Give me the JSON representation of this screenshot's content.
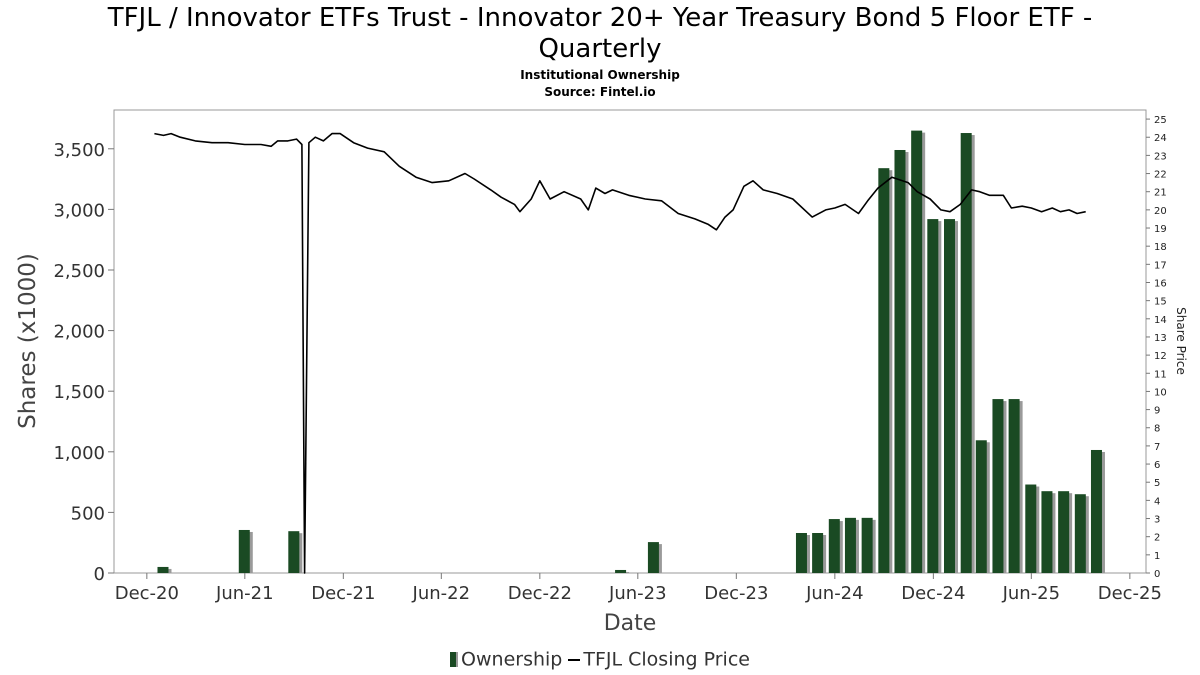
{
  "header": {
    "title_line1": "TFJL / Innovator ETFs Trust - Innovator 20+ Year Treasury Bond 5 Floor ETF -",
    "title_line2": "Quarterly",
    "subtitle1": "Institutional Ownership",
    "subtitle2": "Source: Fintel.io"
  },
  "legend": {
    "ownership": "Ownership",
    "price": "TFJL Closing Price"
  },
  "colors": {
    "bar": "#1a4a23",
    "bar_shadow": "#9a9a9a",
    "line": "#000000"
  },
  "chart_data": {
    "type": "bar",
    "xlabel": "Date",
    "ylabel": "Shares (x1000)",
    "y2label": "Share Price",
    "ylim": [
      0,
      3820
    ],
    "y2lim": [
      0,
      25.5
    ],
    "yticks": [
      0,
      500,
      1000,
      1500,
      2000,
      2500,
      3000,
      3500
    ],
    "ytick_labels": [
      "0",
      "500",
      "1,000",
      "1,500",
      "2,000",
      "2,500",
      "3,000",
      "3,500"
    ],
    "y2ticks": [
      0,
      1,
      2,
      3,
      4,
      5,
      6,
      7,
      8,
      9,
      10,
      11,
      12,
      13,
      14,
      15,
      16,
      17,
      18,
      19,
      20,
      21,
      22,
      23,
      24,
      25
    ],
    "xlim": [
      "2020-10-01",
      "2025-12-31"
    ],
    "xticks": [
      {
        "date": "2020-12-01",
        "label": "Dec-20"
      },
      {
        "date": "2021-06-01",
        "label": "Jun-21"
      },
      {
        "date": "2021-12-01",
        "label": "Dec-21"
      },
      {
        "date": "2022-06-01",
        "label": "Jun-22"
      },
      {
        "date": "2022-12-01",
        "label": "Dec-22"
      },
      {
        "date": "2023-06-01",
        "label": "Jun-23"
      },
      {
        "date": "2023-12-01",
        "label": "Dec-23"
      },
      {
        "date": "2024-06-01",
        "label": "Jun-24"
      },
      {
        "date": "2024-12-01",
        "label": "Dec-24"
      },
      {
        "date": "2025-06-01",
        "label": "Jun-25"
      },
      {
        "date": "2025-12-01",
        "label": "Dec-25"
      }
    ],
    "series": [
      {
        "name": "Ownership",
        "points": [
          {
            "date": "2020-12-31",
            "value": 50
          },
          {
            "date": "2021-05-31",
            "value": 355
          },
          {
            "date": "2021-08-31",
            "value": 345
          },
          {
            "date": "2023-04-30",
            "value": 25
          },
          {
            "date": "2023-06-30",
            "value": 255
          },
          {
            "date": "2024-03-31",
            "value": 330
          },
          {
            "date": "2024-04-30",
            "value": 330
          },
          {
            "date": "2024-05-31",
            "value": 445
          },
          {
            "date": "2024-06-30",
            "value": 455
          },
          {
            "date": "2024-07-31",
            "value": 455
          },
          {
            "date": "2024-08-31",
            "value": 3340
          },
          {
            "date": "2024-09-30",
            "value": 3490
          },
          {
            "date": "2024-10-31",
            "value": 3650
          },
          {
            "date": "2024-11-30",
            "value": 2920
          },
          {
            "date": "2024-12-31",
            "value": 2920
          },
          {
            "date": "2025-01-31",
            "value": 3630
          },
          {
            "date": "2025-02-28",
            "value": 1095
          },
          {
            "date": "2025-03-31",
            "value": 1435
          },
          {
            "date": "2025-04-30",
            "value": 1435
          },
          {
            "date": "2025-05-31",
            "value": 730
          },
          {
            "date": "2025-06-30",
            "value": 675
          },
          {
            "date": "2025-07-31",
            "value": 675
          },
          {
            "date": "2025-08-31",
            "value": 650
          },
          {
            "date": "2025-09-30",
            "value": 1015
          }
        ]
      },
      {
        "name": "TFJL Closing Price",
        "axis": "right",
        "points": [
          [
            "2020-12-15",
            24.2
          ],
          [
            "2021-01-01",
            24.1
          ],
          [
            "2021-01-15",
            24.2
          ],
          [
            "2021-02-01",
            24.0
          ],
          [
            "2021-03-01",
            23.8
          ],
          [
            "2021-04-01",
            23.7
          ],
          [
            "2021-05-01",
            23.7
          ],
          [
            "2021-06-01",
            23.6
          ],
          [
            "2021-07-01",
            23.6
          ],
          [
            "2021-07-20",
            23.5
          ],
          [
            "2021-08-01",
            23.8
          ],
          [
            "2021-08-20",
            23.8
          ],
          [
            "2021-09-05",
            23.9
          ],
          [
            "2021-09-15",
            23.6
          ],
          [
            "2021-09-20",
            0.0
          ],
          [
            "2021-09-28",
            23.7
          ],
          [
            "2021-10-10",
            24.0
          ],
          [
            "2021-10-25",
            23.8
          ],
          [
            "2021-11-10",
            24.2
          ],
          [
            "2021-11-25",
            24.2
          ],
          [
            "2021-12-20",
            23.7
          ],
          [
            "2022-01-15",
            23.4
          ],
          [
            "2022-02-15",
            23.2
          ],
          [
            "2022-03-15",
            22.4
          ],
          [
            "2022-04-15",
            21.8
          ],
          [
            "2022-05-15",
            21.5
          ],
          [
            "2022-06-15",
            21.6
          ],
          [
            "2022-07-15",
            22.0
          ],
          [
            "2022-08-01",
            21.7
          ],
          [
            "2022-09-01",
            21.1
          ],
          [
            "2022-09-20",
            20.7
          ],
          [
            "2022-10-15",
            20.3
          ],
          [
            "2022-10-25",
            19.9
          ],
          [
            "2022-11-15",
            20.6
          ],
          [
            "2022-12-01",
            21.6
          ],
          [
            "2022-12-20",
            20.6
          ],
          [
            "2023-01-15",
            21.0
          ],
          [
            "2023-02-15",
            20.6
          ],
          [
            "2023-03-01",
            20.0
          ],
          [
            "2023-03-15",
            21.2
          ],
          [
            "2023-04-01",
            20.9
          ],
          [
            "2023-04-15",
            21.1
          ],
          [
            "2023-05-15",
            20.8
          ],
          [
            "2023-06-15",
            20.6
          ],
          [
            "2023-07-15",
            20.5
          ],
          [
            "2023-08-15",
            19.8
          ],
          [
            "2023-09-15",
            19.5
          ],
          [
            "2023-10-10",
            19.2
          ],
          [
            "2023-10-25",
            18.9
          ],
          [
            "2023-11-10",
            19.6
          ],
          [
            "2023-11-25",
            20.0
          ],
          [
            "2023-12-15",
            21.3
          ],
          [
            "2024-01-01",
            21.6
          ],
          [
            "2024-01-20",
            21.1
          ],
          [
            "2024-02-15",
            20.9
          ],
          [
            "2024-03-15",
            20.6
          ],
          [
            "2024-04-20",
            19.6
          ],
          [
            "2024-05-15",
            20.0
          ],
          [
            "2024-06-01",
            20.1
          ],
          [
            "2024-06-20",
            20.3
          ],
          [
            "2024-07-15",
            19.8
          ],
          [
            "2024-08-01",
            20.5
          ],
          [
            "2024-08-20",
            21.2
          ],
          [
            "2024-09-15",
            21.8
          ],
          [
            "2024-10-15",
            21.5
          ],
          [
            "2024-11-01",
            21.0
          ],
          [
            "2024-11-25",
            20.6
          ],
          [
            "2024-12-15",
            20.0
          ],
          [
            "2025-01-01",
            19.9
          ],
          [
            "2025-01-20",
            20.3
          ],
          [
            "2025-02-10",
            21.1
          ],
          [
            "2025-02-25",
            21.0
          ],
          [
            "2025-03-15",
            20.8
          ],
          [
            "2025-04-10",
            20.8
          ],
          [
            "2025-04-25",
            20.1
          ],
          [
            "2025-05-15",
            20.2
          ],
          [
            "2025-06-01",
            20.1
          ],
          [
            "2025-06-20",
            19.9
          ],
          [
            "2025-07-10",
            20.1
          ],
          [
            "2025-07-25",
            19.9
          ],
          [
            "2025-08-10",
            20.0
          ],
          [
            "2025-08-25",
            19.8
          ],
          [
            "2025-09-10",
            19.9
          ]
        ]
      }
    ]
  }
}
